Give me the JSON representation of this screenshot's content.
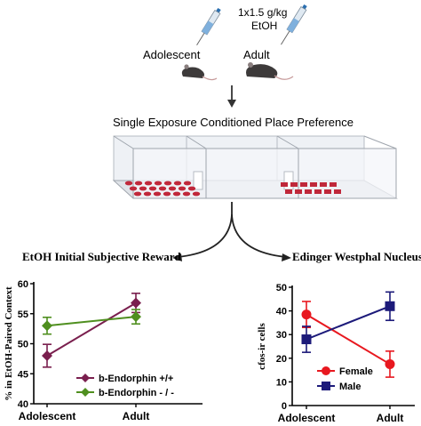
{
  "top": {
    "dose_line1": "1x1.5 g/kg",
    "dose_line2": "EtOH",
    "adolescent_label": "Adolescent",
    "adult_label": "Adult"
  },
  "apparatus": {
    "title": "Single Exposure Conditioned Place Preference"
  },
  "left_panel": {
    "heading": "EtOH Initial Subjective Reward"
  },
  "right_panel": {
    "heading": "Edinger Westphal Nucleus"
  },
  "colors": {
    "purple": "#7a1f4e",
    "green": "#4f8f1f",
    "red": "#e8181f",
    "navy": "#1c1a7a",
    "floor_dot": "#c0283a"
  },
  "chart_data": [
    {
      "type": "line",
      "title": "",
      "xlabel": "",
      "ylabel": "% in EtOH-Paired Context",
      "categories": [
        "Adolescent",
        "Adult"
      ],
      "ylim": [
        40,
        60
      ],
      "yticks": [
        40,
        45,
        50,
        55,
        60
      ],
      "legend_position": "bottom-center",
      "series": [
        {
          "name": "b-Endorphin +/+",
          "marker": "diamond",
          "color": "#7a1f4e",
          "values": [
            48.0,
            56.8
          ],
          "errors": [
            1.9,
            1.6
          ]
        },
        {
          "name": "b-Endorphin - / -",
          "marker": "diamond",
          "color": "#4f8f1f",
          "values": [
            53.0,
            54.5
          ],
          "errors": [
            1.4,
            1.2
          ]
        }
      ]
    },
    {
      "type": "line",
      "title": "",
      "xlabel": "",
      "ylabel": "cfos-ir cells",
      "categories": [
        "Adolescent",
        "Adult"
      ],
      "ylim": [
        0,
        50
      ],
      "yticks": [
        0,
        10,
        20,
        30,
        40,
        50
      ],
      "legend_position": "bottom-right",
      "series": [
        {
          "name": "Female",
          "marker": "circle",
          "color": "#e8181f",
          "values": [
            38.5,
            17.5
          ],
          "errors": [
            5.5,
            5.5
          ]
        },
        {
          "name": "Male",
          "marker": "square",
          "color": "#1c1a7a",
          "values": [
            28.0,
            42.0
          ],
          "errors": [
            5.5,
            6.0
          ]
        }
      ]
    }
  ]
}
